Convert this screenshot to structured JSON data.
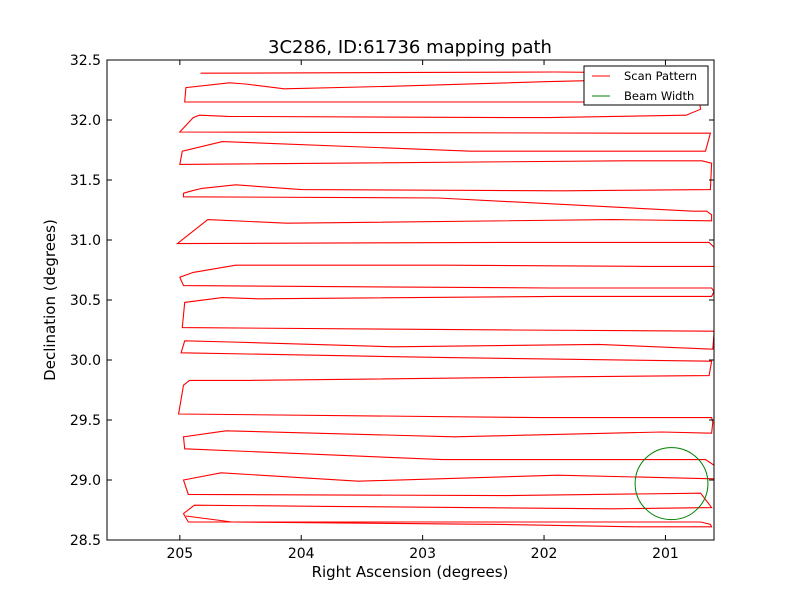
{
  "chart_data": {
    "type": "line",
    "title": "3C286, ID:61736 mapping path",
    "xlabel": "Right Ascension (degrees)",
    "ylabel": "Declination (degrees)",
    "xlim": [
      205.6,
      200.6
    ],
    "ylim": [
      28.5,
      32.5
    ],
    "x_inverted": true,
    "xticks": [
      205,
      204,
      203,
      202,
      201
    ],
    "xtick_labels": [
      "205",
      "204",
      "203",
      "202",
      "201"
    ],
    "yticks": [
      28.5,
      29.0,
      29.5,
      30.0,
      30.5,
      31.0,
      31.5,
      32.0,
      32.5
    ],
    "ytick_labels": [
      "28.5",
      "29.0",
      "29.5",
      "30.0",
      "30.5",
      "31.0",
      "31.5",
      "32.0",
      "32.5"
    ],
    "grid": false,
    "legend_position": "top-right",
    "series": [
      {
        "name": "Scan Pattern",
        "color": "#ff0000",
        "points": [
          [
            204.83,
            32.39
          ],
          [
            201.91,
            32.4
          ],
          [
            200.76,
            32.39
          ],
          [
            200.72,
            32.35
          ],
          [
            201.96,
            32.32
          ],
          [
            203.3,
            32.28
          ],
          [
            204.14,
            32.26
          ],
          [
            204.46,
            32.3
          ],
          [
            204.59,
            32.31
          ],
          [
            204.95,
            32.27
          ],
          [
            204.96,
            32.15
          ],
          [
            201.44,
            32.15
          ],
          [
            200.72,
            32.15
          ],
          [
            200.71,
            32.09
          ],
          [
            200.83,
            32.04
          ],
          [
            201.96,
            32.02
          ],
          [
            202.23,
            32.02
          ],
          [
            204.6,
            32.03
          ],
          [
            204.84,
            32.04
          ],
          [
            204.89,
            32.02
          ],
          [
            205.0,
            31.9
          ],
          [
            201.25,
            31.89
          ],
          [
            200.63,
            31.89
          ],
          [
            200.67,
            31.74
          ],
          [
            202.6,
            31.74
          ],
          [
            204.65,
            31.82
          ],
          [
            204.98,
            31.74
          ],
          [
            205.0,
            31.63
          ],
          [
            201.33,
            31.66
          ],
          [
            200.7,
            31.66
          ],
          [
            200.62,
            31.64
          ],
          [
            200.63,
            31.42
          ],
          [
            201.85,
            31.41
          ],
          [
            204.0,
            31.42
          ],
          [
            204.54,
            31.46
          ],
          [
            204.82,
            31.43
          ],
          [
            204.9,
            31.41
          ],
          [
            204.97,
            31.39
          ],
          [
            204.97,
            31.36
          ],
          [
            202.87,
            31.35
          ],
          [
            200.77,
            31.24
          ],
          [
            200.66,
            31.24
          ],
          [
            200.62,
            31.21
          ],
          [
            200.62,
            31.16
          ],
          [
            201.43,
            31.17
          ],
          [
            204.12,
            31.14
          ],
          [
            204.77,
            31.17
          ],
          [
            205.02,
            30.97
          ],
          [
            202.36,
            30.98
          ],
          [
            200.64,
            30.98
          ],
          [
            200.59,
            30.93
          ],
          [
            200.58,
            30.78
          ],
          [
            201.18,
            30.78
          ],
          [
            202.81,
            30.79
          ],
          [
            204.54,
            30.79
          ],
          [
            204.89,
            30.73
          ],
          [
            205.0,
            30.69
          ],
          [
            204.97,
            30.62
          ],
          [
            201.94,
            30.6
          ],
          [
            200.62,
            30.6
          ],
          [
            200.6,
            30.57
          ],
          [
            200.62,
            30.53
          ],
          [
            201.09,
            30.53
          ],
          [
            201.91,
            30.53
          ],
          [
            204.35,
            30.51
          ],
          [
            204.65,
            30.52
          ],
          [
            204.96,
            30.48
          ],
          [
            204.98,
            30.27
          ],
          [
            202.26,
            30.25
          ],
          [
            200.6,
            30.24
          ],
          [
            200.6,
            30.22
          ],
          [
            200.61,
            30.09
          ],
          [
            201.55,
            30.13
          ],
          [
            203.24,
            30.11
          ],
          [
            204.58,
            30.15
          ],
          [
            204.96,
            30.16
          ],
          [
            204.99,
            30.06
          ],
          [
            202.79,
            30.02
          ],
          [
            200.62,
            29.99
          ],
          [
            200.64,
            29.87
          ],
          [
            201.8,
            29.86
          ],
          [
            203.52,
            29.84
          ],
          [
            204.43,
            29.83
          ],
          [
            204.92,
            29.83
          ],
          [
            204.97,
            29.79
          ],
          [
            205.01,
            29.55
          ],
          [
            202.02,
            29.52
          ],
          [
            200.62,
            29.52
          ],
          [
            200.61,
            29.48
          ],
          [
            200.62,
            29.39
          ],
          [
            201.03,
            29.4
          ],
          [
            202.74,
            29.36
          ],
          [
            204.62,
            29.41
          ],
          [
            204.97,
            29.36
          ],
          [
            204.96,
            29.26
          ],
          [
            202.84,
            29.17
          ],
          [
            200.67,
            29.17
          ],
          [
            200.58,
            29.11
          ],
          [
            200.6,
            29.01
          ],
          [
            201.89,
            29.04
          ],
          [
            203.53,
            28.99
          ],
          [
            204.66,
            29.06
          ],
          [
            204.97,
            29.0
          ],
          [
            204.93,
            28.88
          ],
          [
            202.34,
            28.87
          ],
          [
            200.71,
            28.89
          ],
          [
            200.62,
            28.77
          ],
          [
            201.44,
            28.76
          ],
          [
            203.77,
            28.78
          ],
          [
            204.88,
            28.79
          ],
          [
            204.97,
            28.72
          ],
          [
            204.93,
            28.65
          ],
          [
            201.81,
            28.65
          ],
          [
            200.71,
            28.65
          ],
          [
            200.63,
            28.63
          ],
          [
            200.62,
            28.61
          ],
          [
            201.23,
            28.61
          ],
          [
            202.35,
            28.63
          ],
          [
            204.57,
            28.65
          ],
          [
            204.95,
            28.7
          ]
        ]
      }
    ],
    "beam": {
      "name": "Beam Width",
      "color": "#008000",
      "center": [
        200.95,
        28.97
      ],
      "radius_deg": 0.3
    }
  }
}
